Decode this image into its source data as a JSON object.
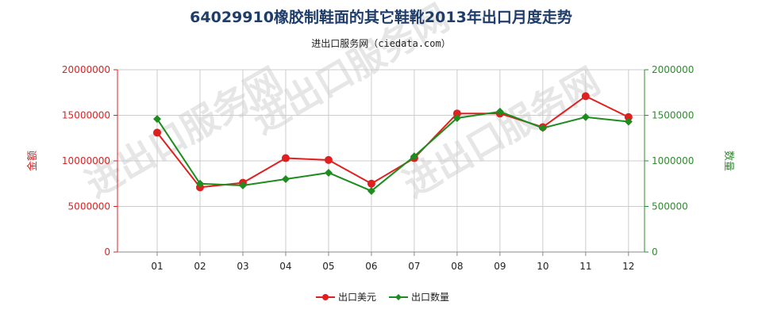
{
  "chart_data": {
    "type": "line",
    "title": "64029910橡胶制鞋面的其它鞋靴2013年出口月度走势",
    "subtitle": "进出口服务网（ciedata.com）",
    "watermark": "进出口服务网",
    "categories": [
      "01",
      "02",
      "03",
      "04",
      "05",
      "06",
      "07",
      "08",
      "09",
      "10",
      "11",
      "12"
    ],
    "y_left": {
      "label": "金额",
      "ylim": [
        0,
        20000000
      ],
      "ticks": [
        0,
        5000000,
        10000000,
        15000000,
        20000000
      ],
      "color": "#e02020"
    },
    "y_right": {
      "label": "数量",
      "ylim": [
        0,
        2000000
      ],
      "ticks": [
        0,
        500000,
        1000000,
        1500000,
        2000000
      ],
      "color": "#2e8b2e"
    },
    "grid": true,
    "legend_position": "bottom-center",
    "series": [
      {
        "name": "出口美元",
        "axis": "left",
        "color": "#e02020",
        "marker": "circle",
        "values": [
          13100000,
          7100000,
          7600000,
          10300000,
          10100000,
          7500000,
          10300000,
          15200000,
          15200000,
          13700000,
          17100000,
          14800000
        ]
      },
      {
        "name": "出口数量",
        "axis": "right",
        "color": "#1e8c1e",
        "marker": "diamond",
        "values": [
          1460000,
          750000,
          730000,
          800000,
          870000,
          670000,
          1050000,
          1470000,
          1540000,
          1360000,
          1480000,
          1430000
        ]
      }
    ]
  }
}
